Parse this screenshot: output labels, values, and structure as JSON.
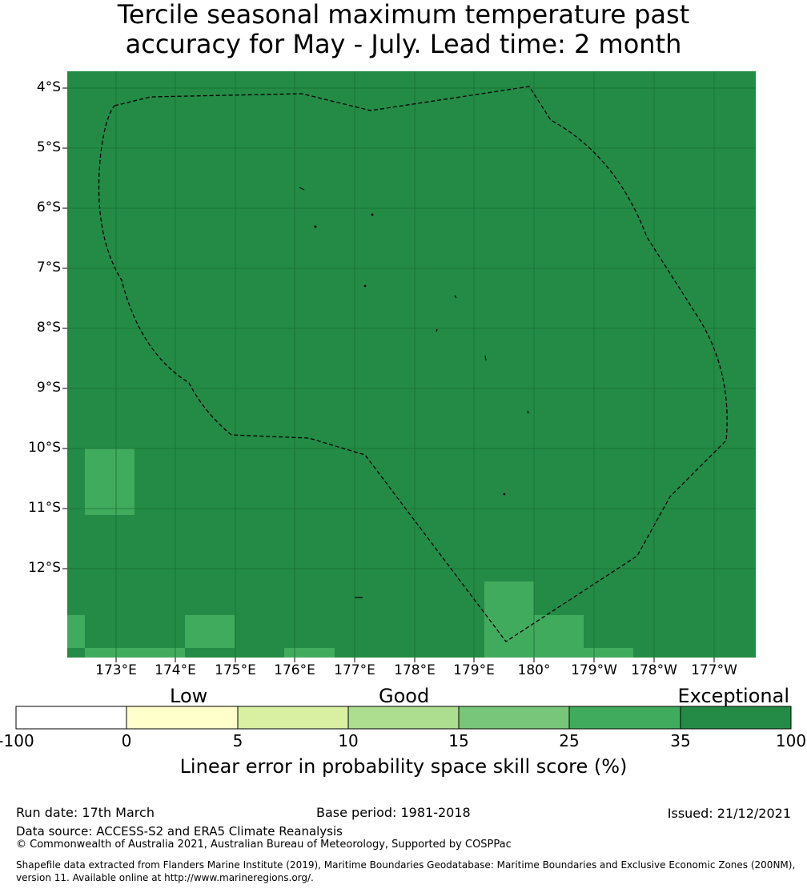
{
  "title_line1": "Tercile seasonal maximum temperature past",
  "title_line2": "accuracy for May - July. Lead time: 2 month",
  "map": {
    "lat_labels": [
      "4°S",
      "5°S",
      "6°S",
      "7°S",
      "8°S",
      "9°S",
      "10°S",
      "11°S",
      "12°S"
    ],
    "lon_labels": [
      "173°E",
      "174°E",
      "175°E",
      "176°E",
      "177°E",
      "178°E",
      "179°E",
      "180°",
      "179°W",
      "178°W",
      "177°W"
    ],
    "background_color": "#238b45",
    "higher_skill_color": "#41ab5d",
    "lower_cells_category": "25-35",
    "main_category": "35-100"
  },
  "colorbar": {
    "categories": [
      "Low",
      "Good",
      "Exceptional"
    ],
    "ticks": [
      "-100",
      "0",
      "5",
      "10",
      "15",
      "25",
      "35",
      "100"
    ],
    "colors": [
      "#ffffff",
      "#ffffcc",
      "#d9f0a3",
      "#addd8e",
      "#78c679",
      "#41ab5d",
      "#238b45"
    ],
    "label": "Linear error in probability space skill score (%)"
  },
  "footer": {
    "run_date": "Run date: 17th March",
    "base_period": "Base period: 1981-2018",
    "issued": "Issued: 21/12/2021",
    "data_source": "Data source: ACCESS-S2 and ERA5 Climate Reanalysis",
    "copyright": "© Commonwealth of Australia 2021, Australian Bureau of Meteorology, Supported by COSPPac",
    "shapefile_line1": "Shapefile data extracted from Flanders Marine Institute (2019), Maritime Boundaries Geodatabase: Maritime Boundaries and Exclusive Economic Zones (200NM),",
    "shapefile_line2": "version 11. Available online at http://www.marineregions.org/."
  }
}
